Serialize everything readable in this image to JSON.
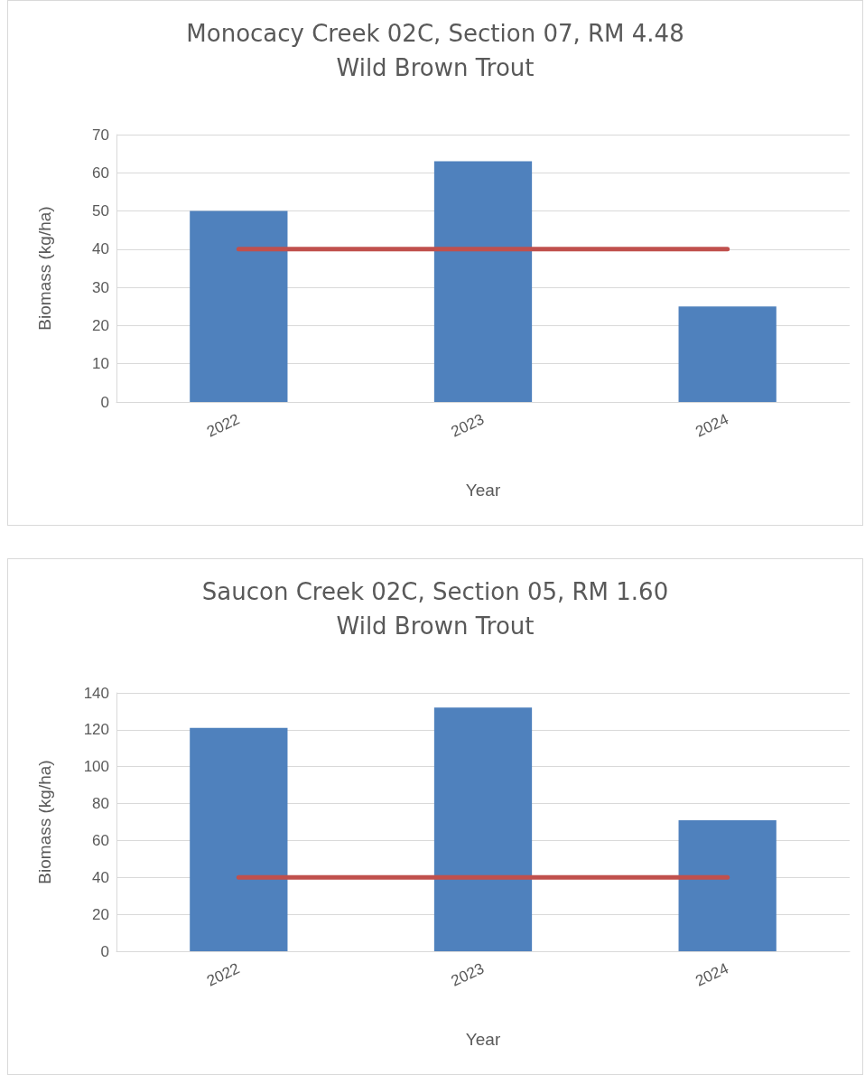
{
  "chart_data": [
    {
      "type": "bar",
      "title": "Monocacy Creek 02C, Section 07, RM 4.48\nWild Brown Trout",
      "xlabel": "Year",
      "ylabel": "Biomass (kg/ha)",
      "categories": [
        "2022",
        "2023",
        "2024"
      ],
      "series": [
        {
          "color": "#4f81bd",
          "values": [
            50,
            63,
            25
          ]
        },
        {
          "type": "line",
          "color": "#c0504d",
          "values": [
            40,
            40,
            40
          ]
        }
      ],
      "ylim": [
        0,
        70
      ],
      "yticks": [
        0,
        10,
        20,
        30,
        40,
        50,
        60,
        70
      ],
      "grid": "y"
    },
    {
      "type": "bar",
      "title": "Saucon Creek 02C, Section 05, RM 1.60\nWild Brown Trout",
      "xlabel": "Year",
      "ylabel": "Biomass (kg/ha)",
      "categories": [
        "2022",
        "2023",
        "2024"
      ],
      "series": [
        {
          "color": "#4f81bd",
          "values": [
            121,
            132,
            71
          ]
        },
        {
          "type": "line",
          "color": "#c0504d",
          "values": [
            40,
            40,
            40
          ]
        }
      ],
      "ylim": [
        0,
        140
      ],
      "yticks": [
        0,
        20,
        40,
        60,
        80,
        100,
        120,
        140
      ],
      "grid": "y"
    }
  ]
}
